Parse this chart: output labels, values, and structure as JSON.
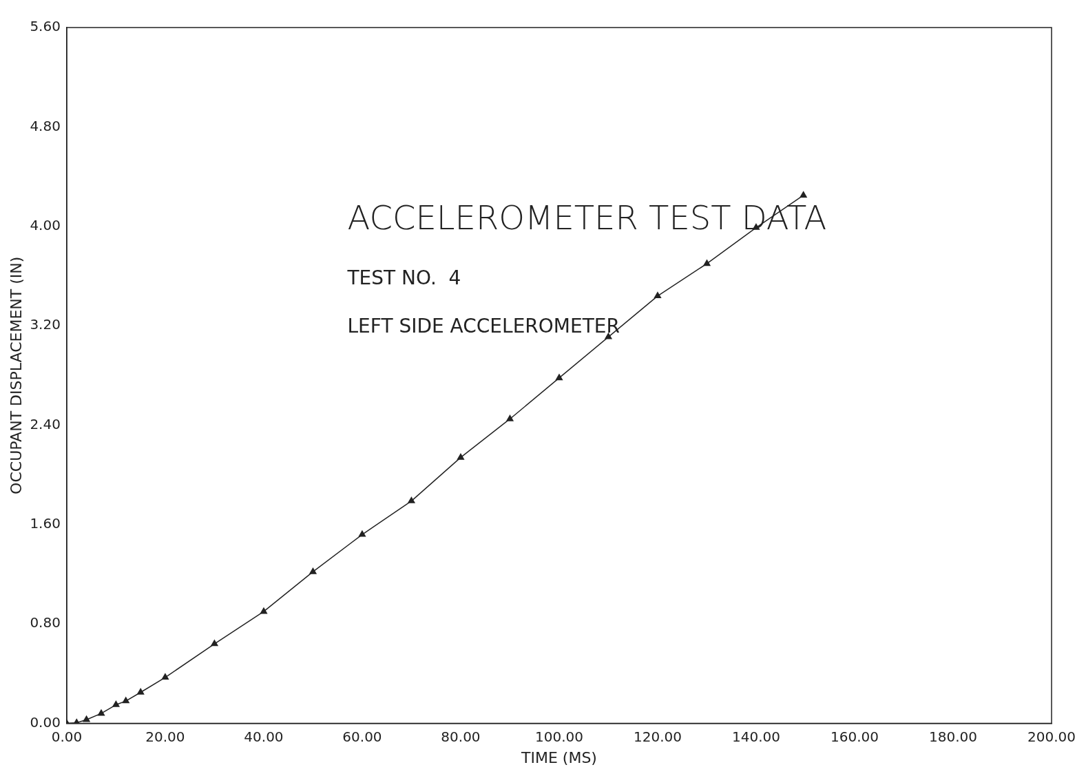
{
  "chart_data": {
    "type": "line",
    "title": "ACCELEROMETER TEST DATA",
    "subtitle": "TEST NO.  4",
    "annotations": [
      "LEFT SIDE ACCELEROMETER"
    ],
    "xlabel": "TIME (MS)",
    "ylabel": "OCCUPANT DISPLACEMENT (IN)",
    "x": [
      0,
      2,
      4,
      7,
      10,
      12,
      15,
      20,
      30,
      40,
      50,
      60,
      70,
      80,
      90,
      100,
      110,
      120,
      130,
      140,
      149.6
    ],
    "series": [
      {
        "color": "#222222",
        "values": [
          0,
          0.005,
          0.03,
          0.08,
          0.15,
          0.18,
          0.25,
          0.37,
          0.64,
          0.9,
          1.22,
          1.52,
          1.79,
          2.14,
          2.45,
          2.78,
          3.11,
          3.44,
          3.7,
          3.99,
          4.25
        ]
      }
    ],
    "xlim": [
      0,
      200
    ],
    "xticks": [
      {
        "value": 0,
        "label": "0.00"
      },
      {
        "value": 20,
        "label": "20.00"
      },
      {
        "value": 40,
        "label": "40.00"
      },
      {
        "value": 60,
        "label": "60.00"
      },
      {
        "value": 80,
        "label": "80.00"
      },
      {
        "value": 100,
        "label": "100.00"
      },
      {
        "value": 120,
        "label": "120.00"
      },
      {
        "value": 140,
        "label": "140.00"
      },
      {
        "value": 160,
        "label": "160.00"
      },
      {
        "value": 180,
        "label": "180.00"
      },
      {
        "value": 200,
        "label": "200.00"
      }
    ],
    "ylim": [
      0,
      5.6
    ],
    "yticks": [
      {
        "value": 0,
        "label": "0.00"
      },
      {
        "value": 0.8,
        "label": "0.80"
      },
      {
        "value": 1.6,
        "label": "1.60"
      },
      {
        "value": 2.4,
        "label": "2.40"
      },
      {
        "value": 3.2,
        "label": "3.20"
      },
      {
        "value": 4,
        "label": "4.00"
      },
      {
        "value": 4.8,
        "label": "4.80"
      },
      {
        "value": 5.6,
        "label": "5.60"
      }
    ],
    "grid": false,
    "legend": false,
    "marker": "triangle",
    "line_style": "solid"
  }
}
